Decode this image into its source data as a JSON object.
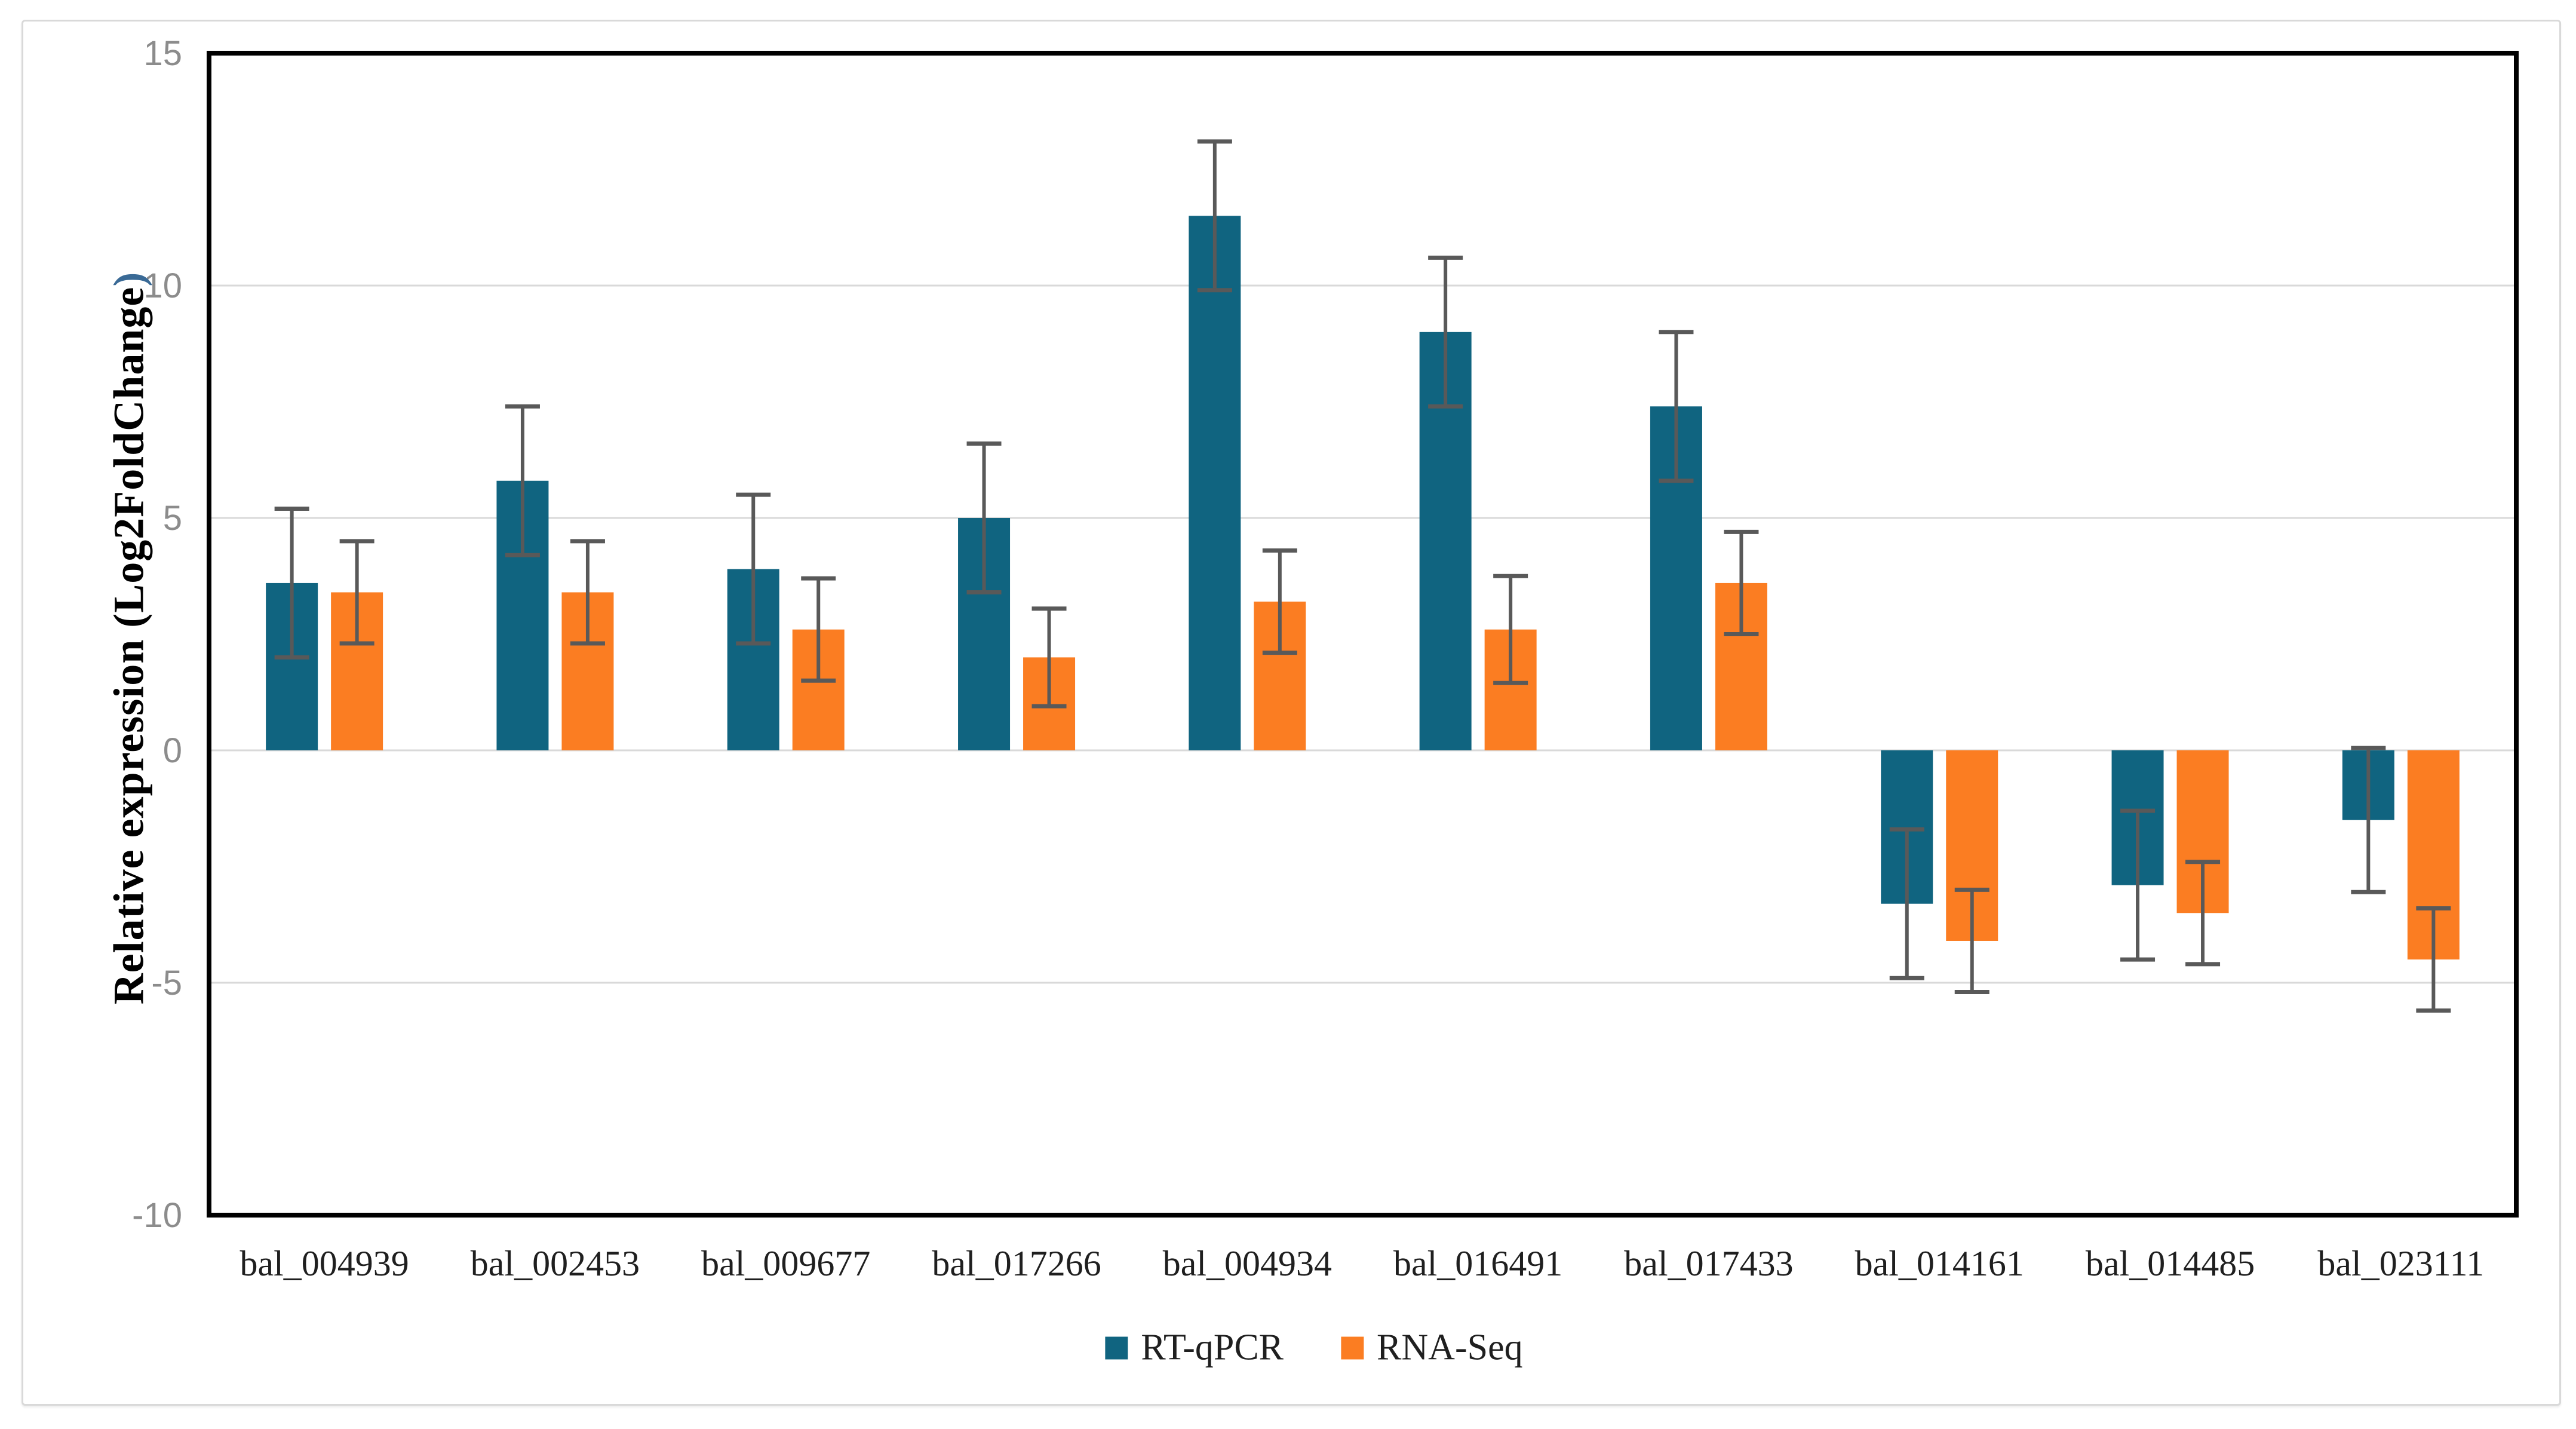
{
  "figure": {
    "background": "#FFFFFF",
    "panel_border_color": "#D9D9D9"
  },
  "chart_data": {
    "type": "bar",
    "title": "",
    "ylabel_main": "Relative expression (Log2FoldChange",
    "ylabel_paren": ")",
    "xlabel": "",
    "categories": [
      "bal_004939",
      "bal_002453",
      "bal_009677",
      "bal_017266",
      "bal_004934",
      "bal_016491",
      "bal_017433",
      "bal_014161",
      "bal_014485",
      "bal_023111"
    ],
    "series": [
      {
        "name": "RT-qPCR",
        "color": "#106480",
        "values": [
          3.6,
          5.8,
          3.9,
          5.0,
          11.5,
          9.0,
          7.4,
          -3.3,
          -2.9,
          -1.5
        ],
        "errors": [
          1.6,
          1.6,
          1.6,
          1.6,
          1.6,
          1.6,
          1.6,
          1.6,
          1.6,
          1.55
        ]
      },
      {
        "name": "RNA-Seq",
        "color": "#FB7D22",
        "values": [
          3.4,
          3.4,
          2.6,
          2.0,
          3.2,
          2.6,
          3.6,
          -4.1,
          -3.5,
          -4.5
        ],
        "errors": [
          1.1,
          1.1,
          1.1,
          1.05,
          1.1,
          1.15,
          1.1,
          1.1,
          1.1,
          1.1
        ]
      }
    ],
    "ylim": [
      -10,
      15
    ],
    "yticks": [
      15,
      10,
      5,
      0,
      -5,
      -10
    ],
    "gridline_values": [
      10,
      5,
      0,
      -5
    ],
    "grid": true,
    "error_bars": true,
    "legend_position": "bottom"
  },
  "colors": {
    "plot_frame": "#000000",
    "gridline": "#D9D9D9",
    "error_bar": "#595959",
    "tick_label": "#8C8C8C",
    "category_label": "#1F1F1F",
    "title_text": "#000000",
    "title_paren": "#3A6A96"
  }
}
